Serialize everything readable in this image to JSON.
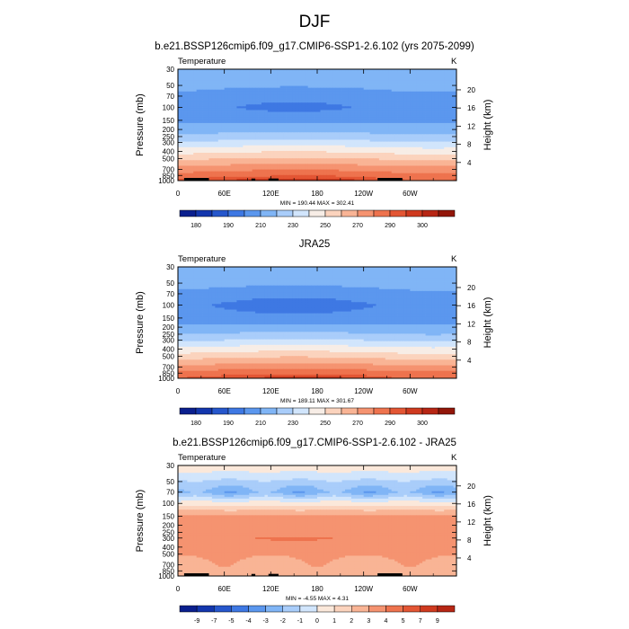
{
  "figure": {
    "title": "DJF"
  },
  "colors": {
    "abs": [
      "#0a1f8e",
      "#1336ad",
      "#2657cc",
      "#3e78e3",
      "#5b97ee",
      "#80b5f6",
      "#a9cdfa",
      "#d1e5fc",
      "#f7ede6",
      "#fbd3bd",
      "#f9b495",
      "#f59370",
      "#ee734e",
      "#e35634",
      "#cf3a1f",
      "#b72614",
      "#921609"
    ],
    "diff": [
      "#0a1f8e",
      "#1336ad",
      "#2657cc",
      "#3e78e3",
      "#5b97ee",
      "#80b5f6",
      "#a9cdfa",
      "#d1e5fc",
      "#fbe8da",
      "#fbd3bd",
      "#f9b495",
      "#f59370",
      "#ee734e",
      "#e35634",
      "#cf3a1f",
      "#b72614"
    ],
    "topo": "#000000"
  },
  "chart_data": [
    {
      "type": "heatmap",
      "title": "b.e21.BSSP126cmip6.f09_g17.CMIP6-SSP1-2.6.102 (yrs 2075-2099)",
      "left_label": "Temperature",
      "units": "K",
      "ylabel": "Pressure (mb)",
      "ylabel_right": "Height (km)",
      "x_ticks": [
        "0",
        "60E",
        "120E",
        "180",
        "120W",
        "60W"
      ],
      "x_tick_values": [
        0,
        60,
        120,
        180,
        240,
        300
      ],
      "xlim": [
        0,
        360
      ],
      "y_ticks": [
        "30",
        "50",
        "70",
        "100",
        "150",
        "200",
        "250",
        "300",
        "400",
        "500",
        "700",
        "850",
        "1000"
      ],
      "y_tick_values": [
        30,
        50,
        70,
        100,
        150,
        200,
        250,
        300,
        400,
        500,
        700,
        850,
        1000
      ],
      "ylim": [
        1000,
        30
      ],
      "height_ticks": [
        "4",
        "8",
        "12",
        "16",
        "20"
      ],
      "height_tick_values": [
        4,
        8,
        12,
        16,
        20
      ],
      "stats": "MIN = 190.44  MAX = 302.41",
      "colorbar_labels": [
        "180",
        "190",
        "210",
        "230",
        "250",
        "270",
        "290",
        "300"
      ],
      "levels": [
        180,
        185,
        190,
        200,
        210,
        220,
        230,
        240,
        250,
        260,
        270,
        280,
        290,
        295,
        300
      ],
      "profile_p": [
        30,
        50,
        70,
        100,
        150,
        200,
        250,
        300,
        400,
        500,
        700,
        850,
        1000
      ],
      "profile_t": [
        218,
        213,
        209,
        206,
        208,
        214,
        222,
        230,
        245,
        257,
        274,
        283,
        290
      ],
      "equator_delta": [
        0,
        -2,
        -6,
        -9,
        -2,
        3,
        4,
        5,
        5,
        5,
        5,
        7,
        9
      ]
    },
    {
      "type": "heatmap",
      "title": "JRA25",
      "left_label": "Temperature",
      "units": "K",
      "ylabel": "Pressure (mb)",
      "ylabel_right": "Height (km)",
      "x_ticks": [
        "0",
        "60E",
        "120E",
        "180",
        "120W",
        "60W"
      ],
      "x_tick_values": [
        0,
        60,
        120,
        180,
        240,
        300
      ],
      "xlim": [
        0,
        360
      ],
      "y_ticks": [
        "30",
        "50",
        "70",
        "100",
        "150",
        "200",
        "250",
        "300",
        "400",
        "500",
        "700",
        "850",
        "1000"
      ],
      "y_tick_values": [
        30,
        50,
        70,
        100,
        150,
        200,
        250,
        300,
        400,
        500,
        700,
        850,
        1000
      ],
      "ylim": [
        1000,
        30
      ],
      "height_ticks": [
        "4",
        "8",
        "12",
        "16",
        "20"
      ],
      "height_tick_values": [
        4,
        8,
        12,
        16,
        20
      ],
      "stats": "MIN = 189.11  MAX = 301.67",
      "colorbar_labels": [
        "180",
        "190",
        "210",
        "230",
        "250",
        "270",
        "290",
        "300"
      ],
      "levels": [
        180,
        185,
        190,
        200,
        210,
        220,
        230,
        240,
        250,
        260,
        270,
        280,
        290,
        295,
        300
      ],
      "profile_p": [
        30,
        50,
        70,
        100,
        150,
        200,
        250,
        300,
        400,
        500,
        700,
        850,
        1000
      ],
      "profile_t": [
        219,
        214,
        209,
        204,
        205,
        211,
        219,
        227,
        242,
        254,
        272,
        282,
        289
      ],
      "equator_delta": [
        0,
        -2,
        -6,
        -10,
        -2,
        3,
        4,
        5,
        5,
        5,
        5,
        7,
        9
      ]
    },
    {
      "type": "heatmap",
      "title": "b.e21.BSSP126cmip6.f09_g17.CMIP6-SSP1-2.6.102 - JRA25",
      "left_label": "Temperature",
      "units": "K",
      "ylabel": "Pressure (mb)",
      "ylabel_right": "Height (km)",
      "x_ticks": [
        "0",
        "60E",
        "120E",
        "180",
        "120W",
        "60W"
      ],
      "x_tick_values": [
        0,
        60,
        120,
        180,
        240,
        300
      ],
      "xlim": [
        0,
        360
      ],
      "y_ticks": [
        "30",
        "50",
        "70",
        "100",
        "150",
        "200",
        "250",
        "300",
        "400",
        "500",
        "700",
        "850",
        "1000"
      ],
      "y_tick_values": [
        30,
        50,
        70,
        100,
        150,
        200,
        250,
        300,
        400,
        500,
        700,
        850,
        1000
      ],
      "ylim": [
        1000,
        30
      ],
      "height_ticks": [
        "4",
        "8",
        "12",
        "16",
        "20"
      ],
      "height_tick_values": [
        4,
        8,
        12,
        16,
        20
      ],
      "stats": "MIN = -4.55  MAX =  4.31",
      "colorbar_labels": [
        "-9",
        "-7",
        "-5",
        "-4",
        "-3",
        "-2",
        "-1",
        "0",
        "1",
        "2",
        "3",
        "4",
        "5",
        "7",
        "9"
      ],
      "levels": [
        -9,
        -7,
        -5,
        -4,
        -3,
        -2,
        -1,
        0,
        1,
        2,
        3,
        4,
        5,
        7,
        9
      ],
      "profile_p": [
        30,
        50,
        70,
        100,
        150,
        200,
        250,
        300,
        400,
        500,
        700,
        850,
        1000
      ],
      "profile_t": [
        0.8,
        -1.2,
        -2.5,
        0.5,
        3.2,
        3.4,
        3.4,
        3.5,
        3.4,
        3.3,
        3.1,
        2.7,
        2.4
      ],
      "equator_delta": [
        0,
        0,
        0,
        0,
        0,
        0,
        0.3,
        0.6,
        0.4,
        0,
        0,
        0,
        0
      ]
    }
  ]
}
